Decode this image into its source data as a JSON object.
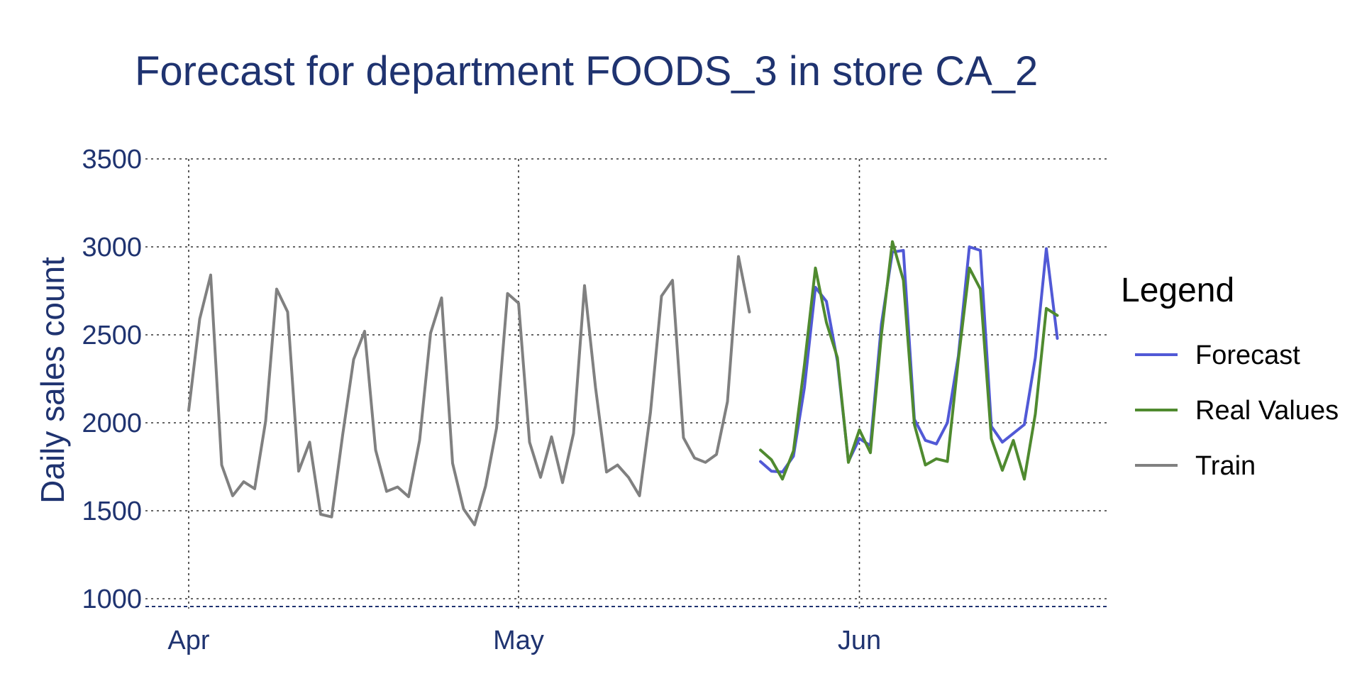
{
  "chart_data": {
    "type": "line",
    "title": "Forecast for department FOODS_3 in store CA_2",
    "xlabel": "",
    "ylabel": "Daily sales count",
    "x_ticks": [
      {
        "date": "2016-04-01",
        "label": "Apr"
      },
      {
        "date": "2016-05-01",
        "label": "May"
      },
      {
        "date": "2016-06-01",
        "label": "Jun"
      }
    ],
    "y_ticks": [
      1000,
      1500,
      2000,
      2500,
      3000,
      3500
    ],
    "xlim": [
      "2016-04-01",
      "2016-06-19"
    ],
    "ylim": [
      950,
      3500
    ],
    "grid": true,
    "legend": {
      "title": "Legend",
      "placement": "right"
    },
    "series": [
      {
        "name": "Forecast",
        "color": "#5159d6",
        "start_date": "2016-05-23",
        "values": [
          1780,
          1725,
          1720,
          1810,
          2200,
          2770,
          2690,
          2350,
          1780,
          1910,
          1870,
          2560,
          2970,
          2980,
          2020,
          1900,
          1880,
          2000,
          2380,
          3000,
          2980,
          1980,
          1890,
          1940,
          1990,
          2370,
          2990,
          2480
        ]
      },
      {
        "name": "Real Values",
        "color": "#4f8a2f",
        "start_date": "2016-05-23",
        "values": [
          1845,
          1790,
          1680,
          1840,
          2330,
          2880,
          2570,
          2370,
          1775,
          1960,
          1830,
          2500,
          3030,
          2810,
          1990,
          1760,
          1795,
          1780,
          2360,
          2880,
          2760,
          1910,
          1730,
          1900,
          1680,
          2050,
          2650,
          2610
        ]
      },
      {
        "name": "Train",
        "color": "#808080",
        "start_date": "2016-04-01",
        "values": [
          2070,
          2590,
          2840,
          1760,
          1585,
          1665,
          1625,
          2010,
          2760,
          2630,
          1725,
          1890,
          1480,
          1465,
          1930,
          2360,
          2520,
          1845,
          1610,
          1635,
          1580,
          1900,
          2510,
          2710,
          1770,
          1510,
          1420,
          1640,
          1970,
          2735,
          2680,
          1890,
          1690,
          1920,
          1660,
          1940,
          2780,
          2200,
          1720,
          1760,
          1690,
          1585,
          2060,
          2720,
          2810,
          1915,
          1800,
          1775,
          1820,
          2120,
          2945,
          2630
        ]
      }
    ]
  }
}
